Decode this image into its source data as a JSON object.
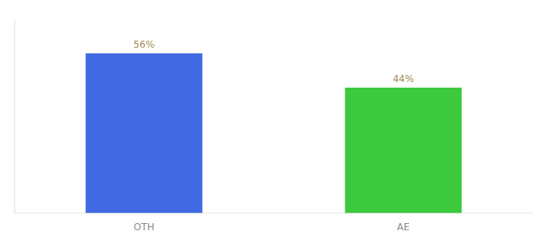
{
  "chart_data": {
    "type": "bar",
    "categories": [
      "OTH",
      "AE"
    ],
    "values": [
      56,
      44
    ],
    "value_labels": [
      "56%",
      "44%"
    ],
    "colors": [
      "#4169e1",
      "#3dc93d"
    ],
    "ylim": [
      0,
      68
    ],
    "data_labels": true,
    "tick_labels": "x",
    "grid": false
  }
}
